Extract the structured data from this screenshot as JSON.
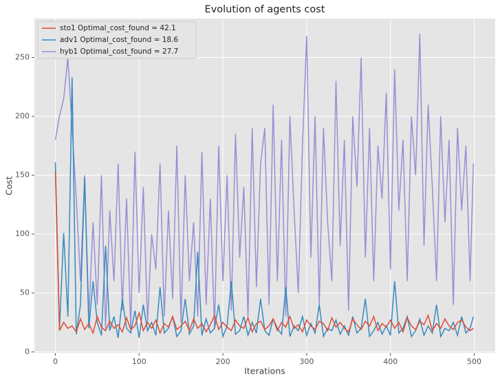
{
  "chart_data": {
    "type": "line",
    "title": "Evolution of agents cost",
    "x_label": "Iterations",
    "y_label": "Cost",
    "x": [
      0,
      5,
      10,
      15,
      20,
      25,
      30,
      35,
      40,
      45,
      50,
      55,
      60,
      65,
      70,
      75,
      80,
      85,
      90,
      95,
      100,
      105,
      110,
      115,
      120,
      125,
      130,
      135,
      140,
      145,
      150,
      155,
      160,
      165,
      170,
      175,
      180,
      185,
      190,
      195,
      200,
      205,
      210,
      215,
      220,
      225,
      230,
      235,
      240,
      245,
      250,
      255,
      260,
      265,
      270,
      275,
      280,
      285,
      290,
      295,
      300,
      305,
      310,
      315,
      320,
      325,
      330,
      335,
      340,
      345,
      350,
      355,
      360,
      365,
      370,
      375,
      380,
      385,
      390,
      395,
      400,
      405,
      410,
      415,
      420,
      425,
      430,
      435,
      440,
      445,
      450,
      455,
      460,
      465,
      470,
      475,
      480,
      485,
      490,
      495,
      499
    ],
    "series": [
      {
        "name": "sto1 Optimal_cost_found = 42.1",
        "color": "#E24A33",
        "values": [
          153,
          18,
          25,
          20,
          22,
          17,
          28,
          19,
          24,
          16,
          30,
          21,
          18,
          26,
          20,
          23,
          17,
          29,
          19,
          22,
          33,
          18,
          25,
          20,
          27,
          16,
          24,
          21,
          30,
          19,
          22,
          26,
          18,
          28,
          20,
          24,
          17,
          23,
          31,
          19,
          25,
          21,
          18,
          27,
          22,
          20,
          29,
          17,
          24,
          26,
          19,
          22,
          28,
          18,
          25,
          21,
          30,
          20,
          23,
          17,
          27,
          22,
          19,
          26,
          24,
          18,
          29,
          21,
          25,
          20,
          17,
          28,
          23,
          19,
          26,
          22,
          30,
          18,
          24,
          21,
          27,
          20,
          25,
          17,
          29,
          22,
          19,
          26,
          23,
          31,
          18,
          24,
          20,
          28,
          22,
          19,
          25,
          27,
          21,
          18,
          20
        ]
      },
      {
        "name": "adv1 Optimal_cost_found = 18.6",
        "color": "#348ABD",
        "values": [
          161,
          20,
          101,
          30,
          233,
          15,
          40,
          148,
          20,
          60,
          25,
          14,
          90,
          18,
          30,
          12,
          45,
          20,
          16,
          35,
          12,
          40,
          18,
          25,
          14,
          55,
          16,
          20,
          30,
          13,
          18,
          45,
          15,
          22,
          85,
          14,
          28,
          16,
          20,
          40,
          13,
          22,
          60,
          15,
          18,
          30,
          14,
          25,
          16,
          45,
          18,
          14,
          28,
          20,
          15,
          55,
          13,
          22,
          18,
          30,
          14,
          24,
          16,
          40,
          13,
          20,
          18,
          27,
          15,
          22,
          14,
          30,
          16,
          20,
          45,
          13,
          18,
          25,
          15,
          22,
          14,
          60,
          16,
          20,
          30,
          13,
          18,
          28,
          14,
          22,
          16,
          40,
          13,
          20,
          18,
          25,
          14,
          30,
          16,
          20,
          30
        ]
      },
      {
        "name": "hyb1 Optimal_cost_found = 27.7",
        "color": "#988ED5",
        "values": [
          180,
          200,
          215,
          250,
          190,
          130,
          60,
          150,
          30,
          110,
          40,
          150,
          20,
          120,
          60,
          160,
          35,
          130,
          20,
          170,
          50,
          140,
          25,
          100,
          70,
          160,
          30,
          120,
          45,
          175,
          25,
          150,
          60,
          110,
          30,
          170,
          40,
          130,
          20,
          175,
          60,
          150,
          35,
          185,
          80,
          140,
          30,
          190,
          55,
          160,
          190,
          40,
          210,
          60,
          180,
          30,
          200,
          120,
          50,
          175,
          268,
          80,
          200,
          40,
          190,
          110,
          60,
          230,
          90,
          180,
          35,
          200,
          140,
          250,
          80,
          190,
          60,
          175,
          130,
          220,
          70,
          240,
          120,
          180,
          60,
          200,
          150,
          270,
          90,
          210,
          140,
          60,
          200,
          110,
          180,
          40,
          190,
          120,
          175,
          60,
          160
        ]
      }
    ],
    "xlim": [
      -25,
      525
    ],
    "ylim": [
      -1,
      283
    ],
    "xticks": [
      0,
      100,
      200,
      300,
      400,
      500
    ],
    "yticks": [
      0,
      50,
      100,
      150,
      200,
      250
    ],
    "grid": true,
    "legend": "upper-left"
  }
}
